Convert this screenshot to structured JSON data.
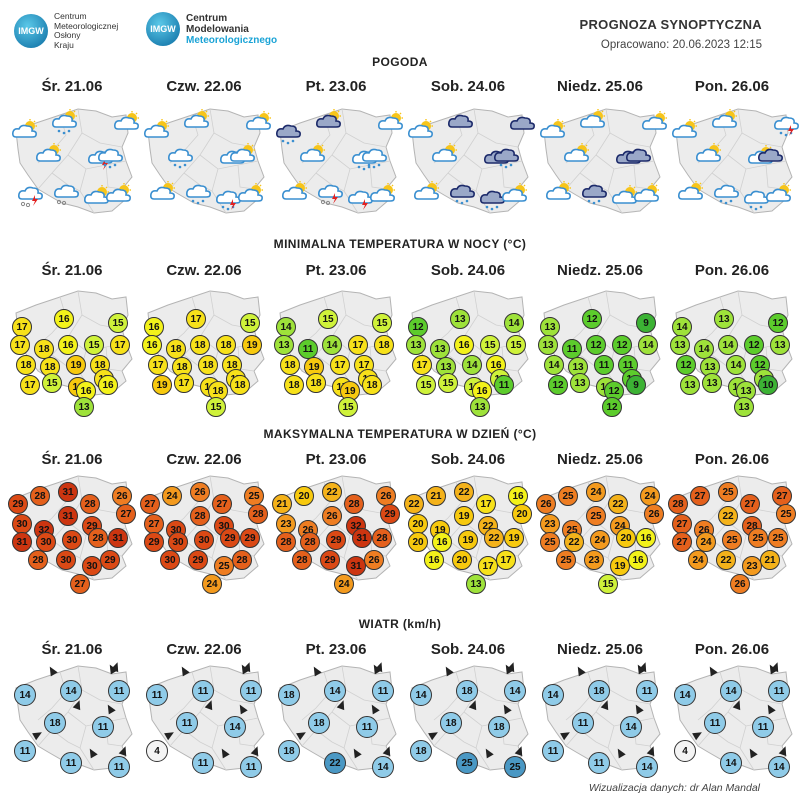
{
  "header": {
    "imgw_badge": "IMGW",
    "imgw_name": [
      "Centrum",
      "Meteorologicznej",
      "Osłony",
      "Kraju"
    ],
    "cmm_name_1": "Centrum",
    "cmm_name_2": "Modelowania",
    "cmm_name_3": "Meteorologicznego",
    "title": "PROGNOZA SYNOPTYCZNA",
    "prepared": "Opracowano: 20.06.2023 12:15"
  },
  "sections": {
    "weather": "POGODA",
    "tmin": "MINIMALNA TEMPERATURA W NOCY (°C)",
    "tmax": "MAKSYMALNA TEMPERATURA W DZIEŃ (°C)",
    "wind": "WIATR (km/h)"
  },
  "days": [
    "Śr. 21.06",
    "Czw. 22.06",
    "Pt. 23.06",
    "Sob. 24.06",
    "Niedz. 25.06",
    "Pon. 26.06"
  ],
  "colors": {
    "map_fill": "#ececec",
    "map_border": "#b4b4b4",
    "wind_circle": "#8fcbe8",
    "wind_strong": "#4a98c4",
    "wind_calm": "#f4f4f4"
  },
  "weather_icons": [
    [
      "cloud-sun-icon",
      "cloud-rain-sun-icon",
      "cloud-sun-icon",
      "cloud-sun-icon",
      "cloud-storm-icon",
      "cloud-rain-icon",
      "cloud-storm-hail-icon",
      "cloud-hail-icon",
      "cloud-sun-icon",
      "cloud-sun-icon"
    ],
    [
      "cloud-sun-icon",
      "cloud-sun-icon",
      "cloud-sun-icon",
      "cloud-rain-icon",
      "cloud-icon",
      "cloud-sun-icon",
      "cloud-sun-icon",
      "cloud-rain-icon",
      "cloud-storm-rain-icon",
      "cloud-sun-icon"
    ],
    [
      "cloud-dark-rain-icon",
      "cloud-dark-sun-icon",
      "cloud-sun-icon",
      "cloud-sun-icon",
      "cloud-rain-icon",
      "cloud-rain-icon",
      "cloud-sun-icon",
      "cloud-storm-hail-icon",
      "cloud-storm-icon",
      "cloud-sun-icon"
    ],
    [
      "cloud-sun-icon",
      "cloud-dark-icon",
      "cloud-dark-icon",
      "cloud-sun-icon",
      "cloud-dark-icon",
      "cloud-dark-rain-icon",
      "cloud-sun-icon",
      "cloud-dark-rain-icon",
      "cloud-dark-rain-icon",
      "cloud-sun-icon"
    ],
    [
      "cloud-sun-icon",
      "cloud-sun-icon",
      "cloud-sun-icon",
      "cloud-sun-icon",
      "cloud-dark-icon",
      "cloud-dark-icon",
      "cloud-sun-icon",
      "cloud-dark-rain-icon",
      "cloud-sun-icon",
      "cloud-sun-icon"
    ],
    [
      "cloud-sun-icon",
      "cloud-sun-icon",
      "cloud-storm-rain-icon",
      "cloud-sun-icon",
      "cloud-sun-icon",
      "cloud-dark-icon",
      "cloud-sun-icon",
      "cloud-rain-icon",
      "cloud-rain-icon",
      "cloud-sun-icon"
    ]
  ],
  "tmin": [
    [
      17,
      16,
      15,
      17,
      18,
      16,
      15,
      17,
      18,
      18,
      19,
      18,
      17,
      15,
      19,
      17,
      16,
      16,
      13
    ],
    [
      16,
      17,
      15,
      16,
      18,
      18,
      18,
      19,
      17,
      18,
      18,
      18,
      19,
      17,
      18,
      17,
      18,
      18,
      15
    ],
    [
      14,
      15,
      15,
      13,
      11,
      14,
      17,
      18,
      18,
      19,
      17,
      17,
      18,
      18,
      17,
      18,
      19,
      18,
      15
    ],
    [
      12,
      13,
      14,
      13,
      13,
      16,
      15,
      15,
      17,
      13,
      14,
      16,
      15,
      15,
      15,
      15,
      16,
      11,
      13
    ],
    [
      13,
      12,
      9,
      13,
      11,
      12,
      12,
      14,
      14,
      13,
      11,
      11,
      12,
      13,
      13,
      12,
      12,
      9,
      12
    ],
    [
      14,
      13,
      12,
      13,
      14,
      14,
      12,
      13,
      12,
      13,
      14,
      12,
      13,
      13,
      13,
      13,
      13,
      10,
      13
    ]
  ],
  "tmax": [
    [
      29,
      28,
      31,
      28,
      26,
      27,
      30,
      32,
      31,
      29,
      31,
      30,
      30,
      28,
      31,
      28,
      30,
      30,
      29,
      27
    ],
    [
      27,
      24,
      26,
      27,
      25,
      28,
      27,
      30,
      28,
      30,
      29,
      30,
      30,
      29,
      29,
      30,
      29,
      25,
      28,
      24
    ],
    [
      21,
      20,
      22,
      28,
      26,
      29,
      23,
      26,
      26,
      32,
      28,
      28,
      29,
      31,
      28,
      28,
      29,
      31,
      26,
      24
    ],
    [
      22,
      21,
      22,
      17,
      16,
      20,
      20,
      19,
      19,
      22,
      20,
      16,
      19,
      22,
      19,
      16,
      20,
      17,
      17,
      13
    ],
    [
      26,
      25,
      24,
      22,
      24,
      26,
      23,
      25,
      25,
      24,
      25,
      22,
      24,
      20,
      16,
      25,
      23,
      19,
      16,
      15
    ],
    [
      28,
      27,
      25,
      27,
      27,
      25,
      27,
      26,
      22,
      28,
      27,
      24,
      25,
      25,
      25,
      24,
      22,
      23,
      21,
      26
    ]
  ],
  "wind": [
    [
      14,
      14,
      11,
      18,
      11,
      11,
      11,
      11
    ],
    [
      11,
      11,
      11,
      11,
      14,
      4,
      11,
      11
    ],
    [
      18,
      14,
      11,
      18,
      11,
      18,
      22,
      14
    ],
    [
      14,
      18,
      14,
      18,
      18,
      18,
      25,
      25
    ],
    [
      14,
      18,
      11,
      11,
      14,
      11,
      11,
      14
    ],
    [
      14,
      14,
      11,
      11,
      11,
      4,
      14,
      14
    ]
  ],
  "footer": "Wizualizacja danych: dr Alan Mandal"
}
